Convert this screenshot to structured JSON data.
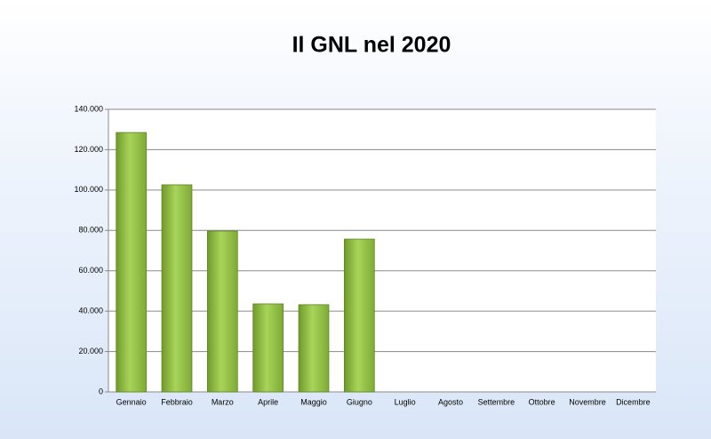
{
  "chart_data": {
    "type": "bar",
    "title": "Il GNL nel 2020",
    "categories": [
      "Gennaio",
      "Febbraio",
      "Marzo",
      "Aprile",
      "Maggio",
      "Giugno",
      "Luglio",
      "Agosto",
      "Settembre",
      "Ottobre",
      "Novembre",
      "Dicembre"
    ],
    "values": [
      128500,
      102600,
      79700,
      43600,
      43200,
      75700,
      null,
      null,
      null,
      null,
      null,
      null
    ],
    "color": "#92c53f",
    "ylim": [
      0,
      140000
    ],
    "yticks": [
      0,
      {
        "value": 20000,
        "label": "20.000"
      },
      {
        "value": 40000,
        "label": "40.000"
      },
      {
        "value": 60000,
        "label": "60.000"
      },
      {
        "value": 80000,
        "label": "80.000"
      },
      {
        "value": 100000,
        "label": "100.000"
      },
      {
        "value": 120000,
        "label": "120.000"
      },
      {
        "value": 140000,
        "label": "140.000"
      }
    ],
    "grid": true
  }
}
